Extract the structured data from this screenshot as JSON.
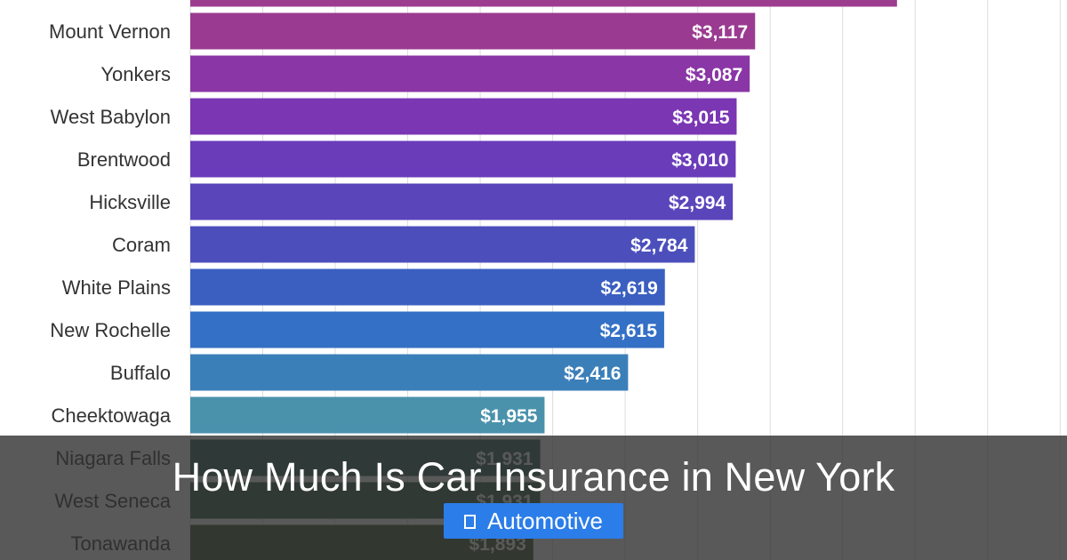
{
  "chart_data": {
    "type": "bar",
    "orientation": "horizontal",
    "title": "",
    "xlabel": "",
    "ylabel": "",
    "grid": true,
    "xlim": [
      0,
      6000
    ],
    "categories": [
      "",
      "Mount Vernon",
      "Yonkers",
      "West Babylon",
      "Brentwood",
      "Hicksville",
      "Coram",
      "White Plains",
      "New Rochelle",
      "Buffalo",
      "Cheektowaga",
      "Niagara Falls",
      "West Seneca",
      "Tonawanda"
    ],
    "values": [
      3900,
      3117,
      3087,
      3015,
      3010,
      2994,
      2784,
      2619,
      2615,
      2416,
      1955,
      1931,
      1931,
      1893
    ],
    "value_labels": [
      "",
      "$3,117",
      "$3,087",
      "$3,015",
      "$3,010",
      "$2,994",
      "$2,784",
      "$2,619",
      "$2,615",
      "$2,416",
      "$1,955",
      "$1,931",
      "$1,931",
      "$1,893"
    ],
    "colors": [
      "#9c3d8f",
      "#9a3a90",
      "#8a36a6",
      "#7b36b3",
      "#6a3cba",
      "#5a45bb",
      "#4c4fbb",
      "#3a5fc0",
      "#3470c6",
      "#3b7fb9",
      "#4a92ac",
      "#2f5e58",
      "#335f45",
      "#3e5b2e"
    ]
  },
  "banner": {
    "title": "How Much Is Car Insurance in New York",
    "category": "Automotive",
    "category_icon": "folder-icon"
  }
}
